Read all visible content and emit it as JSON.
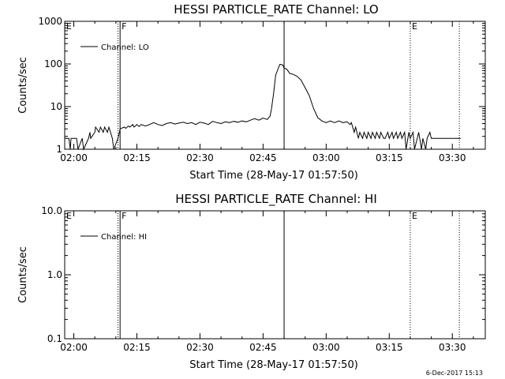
{
  "footer": {
    "date_stamp": "6-Dec-2017 15:13"
  },
  "chart_data": [
    {
      "type": "line",
      "title": "HESSI PARTICLE_RATE Channel: LO",
      "xlabel": "Start Time (28-May-17 01:57:50)",
      "ylabel": "Counts/sec",
      "ylog": true,
      "xlim": [
        "01:57:50",
        "03:37:50"
      ],
      "ylim": [
        1,
        1000
      ],
      "grid": false,
      "legend_position": "top-left",
      "x_ticks": [
        "02:00",
        "02:15",
        "02:30",
        "02:45",
        "03:00",
        "03:15",
        "03:30"
      ],
      "y_ticks": [
        "1",
        "10",
        "100",
        "1000"
      ],
      "series": [
        {
          "name": "Channel: LO",
          "color": "#000000",
          "x": [
            "01:57:50",
            "01:58:50",
            "01:59:10",
            "01:59:20",
            "02:00:40",
            "02:01:00",
            "02:02:00",
            "02:02:20",
            "02:03:30",
            "02:03:50",
            "02:04:00",
            "02:05:00",
            "02:05:10",
            "02:06:00",
            "02:06:20",
            "02:07:00",
            "02:07:20",
            "02:08:00",
            "02:08:20",
            "02:09:10",
            "02:09:30",
            "02:10:30",
            "02:10:50",
            "02:11:00",
            "02:12:00",
            "02:12:20",
            "02:13:00",
            "02:13:20",
            "02:14:00",
            "02:14:20",
            "02:15:00",
            "02:15:30",
            "02:16:00",
            "02:17:00",
            "02:18:00",
            "02:19:00",
            "02:20:00",
            "02:21:00",
            "02:22:00",
            "02:23:00",
            "02:24:00",
            "02:25:00",
            "02:26:00",
            "02:27:00",
            "02:28:00",
            "02:29:00",
            "02:30:00",
            "02:31:00",
            "02:32:00",
            "02:33:00",
            "02:34:00",
            "02:35:00",
            "02:36:00",
            "02:37:00",
            "02:38:00",
            "02:39:00",
            "02:40:00",
            "02:41:00",
            "02:42:00",
            "02:43:00",
            "02:44:00",
            "02:45:00",
            "02:46:00",
            "02:46:40",
            "02:47:00",
            "02:47:30",
            "02:48:00",
            "02:49:00",
            "02:49:40",
            "02:50:00",
            "02:50:40",
            "02:51:20",
            "02:52:00",
            "02:53:00",
            "02:54:00",
            "02:54:40",
            "02:55:20",
            "02:56:00",
            "02:57:00",
            "02:58:00",
            "02:59:00",
            "03:00:00",
            "03:01:00",
            "03:02:00",
            "03:03:00",
            "03:04:00",
            "03:05:00",
            "03:05:40",
            "03:06:00",
            "03:06:40",
            "03:07:00",
            "03:07:40",
            "03:08:00",
            "03:08:40",
            "03:09:00",
            "03:09:40",
            "03:10:00",
            "03:10:40",
            "03:11:00",
            "03:11:40",
            "03:12:00",
            "03:12:40",
            "03:13:00",
            "03:13:40",
            "03:14:00",
            "03:14:40",
            "03:15:00",
            "03:15:40",
            "03:16:00",
            "03:16:40",
            "03:17:00",
            "03:17:40",
            "03:18:00",
            "03:18:40",
            "03:19:00",
            "03:19:40",
            "03:20:00",
            "03:20:40",
            "03:21:00",
            "03:21:40",
            "03:22:00",
            "03:22:40",
            "03:23:00",
            "03:23:40",
            "03:24:00",
            "03:24:40",
            "03:25:00",
            "03:26:00",
            "03:27:00",
            "03:28:00",
            "03:29:00",
            "03:30:00",
            "03:31:00",
            "03:32:00"
          ],
          "y": [
            1.8,
            1.8,
            1,
            1.8,
            1.8,
            1,
            1.8,
            1,
            1.8,
            2.5,
            1.8,
            2.5,
            3.3,
            2.5,
            3.3,
            2.5,
            3.3,
            2.5,
            3.3,
            1.8,
            1,
            1.8,
            2.5,
            3,
            3.3,
            3.1,
            3.5,
            3.3,
            3.8,
            3.3,
            3.8,
            3.4,
            3.8,
            3.5,
            3.8,
            4.2,
            3.8,
            3.6,
            4,
            4.2,
            3.9,
            4.1,
            4.3,
            4,
            4.2,
            3.8,
            4.3,
            4.1,
            3.8,
            4.5,
            4.2,
            4,
            4.4,
            4.2,
            4.5,
            4.3,
            4.6,
            4.4,
            4.8,
            5.2,
            4.8,
            5.4,
            5,
            6,
            9,
            20,
            55,
            98,
            95,
            80,
            75,
            60,
            58,
            52,
            42,
            32,
            24,
            18,
            9,
            5.5,
            4.6,
            4.2,
            4.6,
            4.2,
            4.6,
            4.2,
            4.4,
            3.8,
            4.2,
            2.5,
            3.3,
            1.8,
            2.5,
            1.8,
            2.5,
            1.8,
            2.5,
            1.8,
            2.5,
            1.8,
            2.5,
            1.8,
            2.5,
            1.8,
            1.8,
            2.5,
            1.8,
            2.5,
            1.8,
            2.5,
            1.8,
            2.5,
            1.8,
            2.5,
            1,
            2.5,
            1.8,
            2.5,
            1,
            1.8,
            2.5,
            1,
            1.8,
            1,
            1.8,
            2.5,
            1.8,
            1.8,
            1.8,
            1.8,
            1.8,
            1.8,
            1.8,
            1.8
          ]
        }
      ],
      "annotations": [
        {
          "label": "E",
          "time": "01:57:50",
          "style": "dotted"
        },
        {
          "label": "F",
          "time": "02:11:00",
          "style": "solid"
        },
        {
          "label": "",
          "time": "02:10:30",
          "style": "dotted"
        },
        {
          "label": "",
          "time": "02:50:00",
          "style": "solid"
        },
        {
          "label": "E",
          "time": "03:20:00",
          "style": "dotted"
        },
        {
          "label": "",
          "time": "03:31:40",
          "style": "dotted"
        }
      ]
    },
    {
      "type": "line",
      "title": "HESSI PARTICLE_RATE Channel: HI",
      "xlabel": "Start Time (28-May-17 01:57:50)",
      "ylabel": "Counts/sec",
      "ylog": true,
      "xlim": [
        "01:57:50",
        "03:37:50"
      ],
      "ylim": [
        0.1,
        10
      ],
      "grid": false,
      "legend_position": "top-left",
      "x_ticks": [
        "02:00",
        "02:15",
        "02:30",
        "02:45",
        "03:00",
        "03:15",
        "03:30"
      ],
      "y_ticks": [
        "0.1",
        "1.0",
        "10.0"
      ],
      "series": [
        {
          "name": "Channel: HI",
          "color": "#000000",
          "x": [],
          "y": []
        }
      ],
      "annotations": [
        {
          "label": "E",
          "time": "01:57:50",
          "style": "dotted"
        },
        {
          "label": "F",
          "time": "02:11:00",
          "style": "solid"
        },
        {
          "label": "",
          "time": "02:10:30",
          "style": "dotted"
        },
        {
          "label": "",
          "time": "02:50:00",
          "style": "solid"
        },
        {
          "label": "E",
          "time": "03:20:00",
          "style": "dotted"
        },
        {
          "label": "",
          "time": "03:31:40",
          "style": "dotted"
        }
      ]
    }
  ]
}
